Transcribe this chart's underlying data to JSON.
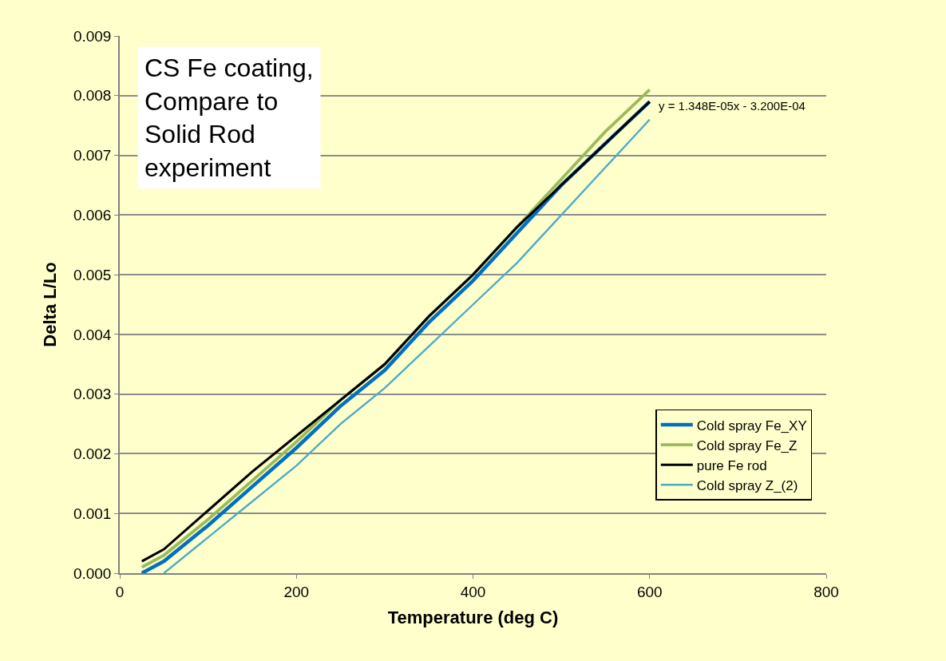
{
  "chart_data": {
    "type": "line",
    "xlabel": "Temperature (deg C)",
    "ylabel": "Delta L/Lo",
    "xlim": [
      0,
      800
    ],
    "xticks": [
      0,
      200,
      400,
      600,
      800
    ],
    "ylim": [
      0,
      0.009
    ],
    "yticks": [
      {
        "value": 0,
        "label": "0.000"
      },
      {
        "value": 0.001,
        "label": "0.001"
      },
      {
        "value": 0.002,
        "label": "0.002"
      },
      {
        "value": 0.003,
        "label": "0.003"
      },
      {
        "value": 0.004,
        "label": "0.004"
      },
      {
        "value": 0.005,
        "label": "0.005"
      },
      {
        "value": 0.006,
        "label": "0.006"
      },
      {
        "value": 0.007,
        "label": "0.007"
      },
      {
        "value": 0.008,
        "label": "0.008"
      },
      {
        "value": 0.009,
        "label": "0.009"
      }
    ],
    "grid": "y",
    "legend": "right",
    "marker": "none",
    "line_style": "solid",
    "x": [
      25,
      50,
      100,
      150,
      200,
      250,
      300,
      350,
      400,
      450,
      500,
      550,
      600
    ],
    "series": [
      {
        "name": "Cold spray Fe_XY",
        "color": "#0070c0",
        "values": [
          0.0,
          0.0002,
          0.0008,
          0.00145,
          0.0021,
          0.0028,
          0.0034,
          0.0042,
          0.0049,
          0.0057,
          0.0065,
          0.0072,
          0.0079
        ]
      },
      {
        "name": "Cold spray Fe_Z",
        "color": "#9bbb59",
        "values": [
          0.0001,
          0.0003,
          0.0009,
          0.00155,
          0.0022,
          0.0029,
          0.0035,
          0.0043,
          0.005,
          0.0058,
          0.0066,
          0.0074,
          0.0081
        ]
      },
      {
        "name": "pure Fe rod",
        "color": "#000000",
        "values": [
          0.0002,
          0.0004,
          0.00105,
          0.0017,
          0.0023,
          0.0029,
          0.0035,
          0.0043,
          0.005,
          0.0058,
          0.0065,
          0.0072,
          0.0079
        ]
      },
      {
        "name": "Cold spray Z_(2)",
        "color": "#4bacc6",
        "values": [
          null,
          0.0,
          0.0006,
          0.0012,
          0.0018,
          0.0025,
          0.0031,
          0.0038,
          0.0045,
          0.0052,
          0.006,
          0.0068,
          0.0076
        ]
      }
    ],
    "annotations": [
      "CS Fe coating,\nCompare to\nSolid Rod\nexperiment",
      "y = 1.348E-05x - 3.200E-04"
    ]
  }
}
